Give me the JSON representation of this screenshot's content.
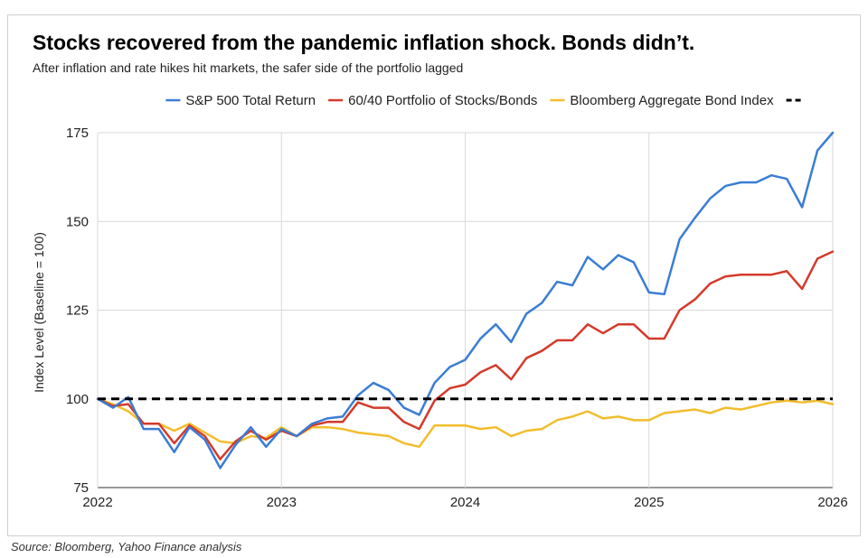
{
  "title": "Stocks recovered from the pandemic inflation shock. Bonds didn’t.",
  "subtitle": "After inflation and rate hikes hit markets, the safer side of the portfolio lagged",
  "source": "Source: Bloomberg, Yahoo Finance analysis",
  "chart_data": {
    "type": "line",
    "ylabel": "Index Level (Baseline = 100)",
    "xlabel": "",
    "xlim": [
      2022,
      2026
    ],
    "ylim": [
      75,
      175
    ],
    "x_ticks": [
      "2022",
      "2023",
      "2024",
      "2025",
      "2026"
    ],
    "y_ticks": [
      "75",
      "100",
      "125",
      "150",
      "175"
    ],
    "grid": true,
    "legend_position": "top",
    "series": [
      {
        "name": "S&P 500 Total Return",
        "color": "#3a7dd4",
        "values": [
          100,
          97.5,
          100.5,
          91.5,
          91.5,
          85,
          92,
          88.5,
          80.5,
          87,
          92,
          86.5,
          91.5,
          89.5,
          93,
          94.5,
          95,
          101,
          104.5,
          102.5,
          97.5,
          95.5,
          104.5,
          109,
          111,
          117,
          121,
          116,
          124,
          127,
          133,
          132,
          140,
          136.5,
          140.5,
          138.5,
          130,
          129.5,
          145,
          151,
          156.5,
          160,
          161,
          161,
          163,
          162,
          154,
          170,
          175
        ]
      },
      {
        "name": "60/40 Portfolio of Stocks/Bonds",
        "color": "#d43a2a",
        "values": [
          100,
          98,
          98.5,
          93,
          93,
          87.5,
          92.5,
          89.5,
          83,
          88,
          91,
          88.5,
          91,
          89.5,
          92.5,
          93.5,
          93.5,
          99,
          97.5,
          97.5,
          93.5,
          91.5,
          99.5,
          103,
          104,
          107.5,
          109.5,
          105.5,
          111.5,
          113.5,
          116.5,
          116.5,
          121,
          118.5,
          121,
          121,
          117,
          117,
          125,
          128,
          132.5,
          134.5,
          135,
          135,
          135,
          136,
          131,
          139.5,
          141.5
        ]
      },
      {
        "name": "Bloomberg Aggregate Bond Index",
        "color": "#f2bd2c",
        "values": [
          100,
          98.5,
          96.5,
          93,
          93,
          91,
          93,
          90.5,
          88,
          87.5,
          89.5,
          89,
          92,
          89.5,
          92,
          92,
          91.5,
          90.5,
          90,
          89.5,
          87.5,
          86.5,
          92.5,
          92.5,
          92.5,
          91.5,
          92,
          89.5,
          91,
          91.5,
          94,
          95,
          96.5,
          94.5,
          95,
          94,
          94,
          96,
          96.5,
          97,
          96,
          97.5,
          97,
          98,
          99,
          99.5,
          99,
          99.5,
          98.5
        ]
      },
      {
        "name": "",
        "color": "#000000",
        "style": "dashed",
        "values": [
          100,
          100
        ]
      }
    ]
  }
}
